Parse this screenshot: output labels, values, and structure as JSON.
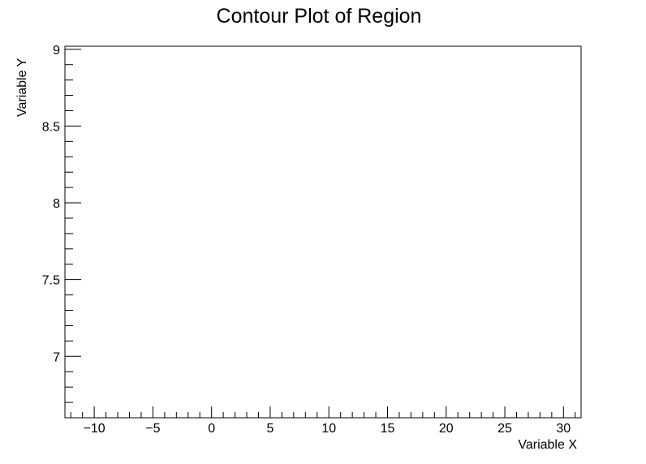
{
  "chart_data": {
    "type": "heatmap",
    "title": "Contour Plot of Region",
    "xlabel": "Variable X",
    "ylabel": "Variable Y",
    "xlim": [
      -12.5,
      31.5
    ],
    "ylim": [
      6.6,
      9.02
    ],
    "x_ticks": [
      -10,
      -5,
      0,
      5,
      10,
      15,
      20,
      25,
      30
    ],
    "x_tick_labels": [
      "−10",
      "−5",
      "0",
      "5",
      "10",
      "15",
      "20",
      "25",
      "30"
    ],
    "x_minor_step": 1,
    "y_ticks": [
      7,
      7.5,
      8,
      8.5,
      9
    ],
    "y_tick_labels": [
      "7",
      "7.5",
      "8",
      "8.5",
      "9"
    ],
    "y_minor_step": 0.1,
    "grid": false,
    "series": []
  }
}
